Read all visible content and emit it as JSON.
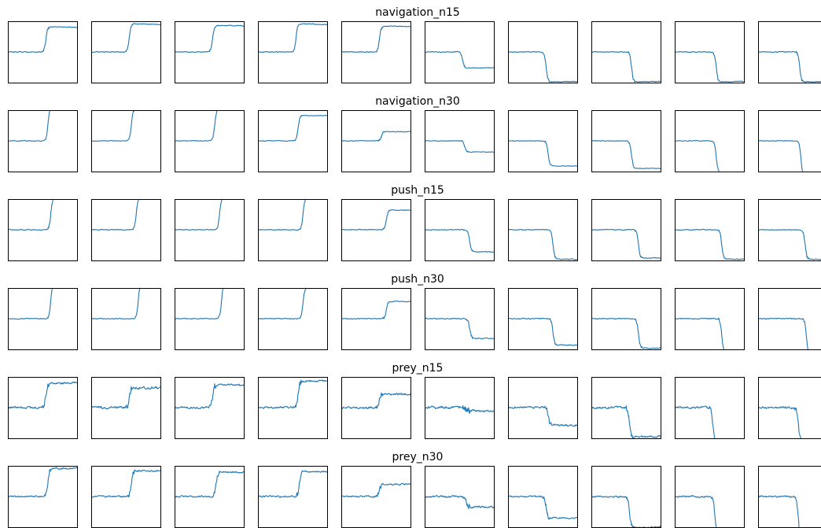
{
  "chart_data": {
    "type": "line",
    "layout": "6 rows x 10 small multiples, axes hidden",
    "grid": false,
    "legend": "none",
    "colors": {
      "trace": "#1f77b4",
      "frame": "#000000"
    },
    "rows": [
      {
        "title": "navigation_n15",
        "panels": [
          {
            "start": 0.5,
            "step_at": 0.55,
            "end": 0.91,
            "end_slope": -0.02,
            "noise": 0.005
          },
          {
            "start": 0.5,
            "step_at": 0.55,
            "end": 0.96,
            "end_slope": -0.04,
            "noise": 0.005
          },
          {
            "start": 0.5,
            "step_at": 0.55,
            "end": 0.93,
            "end_slope": -0.01,
            "noise": 0.005
          },
          {
            "start": 0.5,
            "step_at": 0.55,
            "end": 0.96,
            "end_slope": -0.04,
            "noise": 0.005
          },
          {
            "start": 0.5,
            "step_at": 0.55,
            "end": 0.92,
            "end_slope": -0.01,
            "noise": 0.005
          },
          {
            "start": 0.5,
            "step_at": 0.55,
            "end": 0.24,
            "end_slope": 0.01,
            "noise": 0.005
          },
          {
            "start": 0.5,
            "step_at": 0.55,
            "end": 0.01,
            "end_slope": 0.03,
            "noise": 0.005
          },
          {
            "start": 0.5,
            "step_at": 0.58,
            "end": 0.01,
            "end_slope": 0.03,
            "noise": 0.005
          },
          {
            "start": 0.5,
            "step_at": 0.6,
            "end": 0.01,
            "end_slope": 0.03,
            "noise": 0.005
          },
          {
            "start": 0.5,
            "step_at": 0.6,
            "end": 0.01,
            "end_slope": 0.02,
            "noise": 0.005
          }
        ]
      },
      {
        "title": "navigation_n30",
        "panels": [
          {
            "start": 0.5,
            "step_at": 0.58,
            "end": 1.05,
            "end_slope": 0,
            "noise": 0.004
          },
          {
            "start": 0.5,
            "step_at": 0.58,
            "end": 1.02,
            "end_slope": 0,
            "noise": 0.004
          },
          {
            "start": 0.5,
            "step_at": 0.58,
            "end": 1.02,
            "end_slope": 0,
            "noise": 0.004
          },
          {
            "start": 0.5,
            "step_at": 0.58,
            "end": 0.91,
            "end_slope": 0,
            "noise": 0.004
          },
          {
            "start": 0.5,
            "step_at": 0.58,
            "end": 0.65,
            "end_slope": 0,
            "noise": 0.004
          },
          {
            "start": 0.5,
            "step_at": 0.58,
            "end": 0.32,
            "end_slope": 0,
            "noise": 0.004
          },
          {
            "start": 0.5,
            "step_at": 0.58,
            "end": 0.09,
            "end_slope": 0,
            "noise": 0.004
          },
          {
            "start": 0.5,
            "step_at": 0.58,
            "end": 0.05,
            "end_slope": 0,
            "noise": 0.004
          },
          {
            "start": 0.5,
            "step_at": 0.6,
            "end": -0.02,
            "end_slope": 0,
            "noise": 0.004
          },
          {
            "start": 0.5,
            "step_at": 0.62,
            "end": -0.08,
            "end_slope": 0,
            "noise": 0.004
          }
        ]
      },
      {
        "title": "push_n15",
        "panels": [
          {
            "start": 0.5,
            "step_at": 0.62,
            "end": 1.02,
            "end_slope": 0,
            "noise": 0.005
          },
          {
            "start": 0.5,
            "step_at": 0.65,
            "end": 1.02,
            "end_slope": 0,
            "noise": 0.005
          },
          {
            "start": 0.5,
            "step_at": 0.65,
            "end": 1.02,
            "end_slope": 0,
            "noise": 0.005
          },
          {
            "start": 0.5,
            "step_at": 0.65,
            "end": 1.0,
            "end_slope": 0,
            "noise": 0.005
          },
          {
            "start": 0.5,
            "step_at": 0.65,
            "end": 0.82,
            "end_slope": 0,
            "noise": 0.005
          },
          {
            "start": 0.5,
            "step_at": 0.65,
            "end": 0.14,
            "end_slope": 0,
            "noise": 0.005
          },
          {
            "start": 0.5,
            "step_at": 0.65,
            "end": 0.02,
            "end_slope": 0,
            "noise": 0.005
          },
          {
            "start": 0.5,
            "step_at": 0.68,
            "end": 0.04,
            "end_slope": 0,
            "noise": 0.005
          },
          {
            "start": 0.5,
            "step_at": 0.68,
            "end": 0.02,
            "end_slope": 0,
            "noise": 0.005
          },
          {
            "start": 0.5,
            "step_at": 0.68,
            "end": 0.02,
            "end_slope": 0,
            "noise": 0.005
          }
        ]
      },
      {
        "title": "push_n30",
        "panels": [
          {
            "start": 0.5,
            "step_at": 0.62,
            "end": 1.1,
            "end_slope": 0,
            "noise": 0.005
          },
          {
            "start": 0.5,
            "step_at": 0.68,
            "end": 1.1,
            "end_slope": 0,
            "noise": 0.005
          },
          {
            "start": 0.5,
            "step_at": 0.68,
            "end": 1.1,
            "end_slope": 0,
            "noise": 0.005
          },
          {
            "start": 0.5,
            "step_at": 0.65,
            "end": 1.0,
            "end_slope": 0,
            "noise": 0.005
          },
          {
            "start": 0.5,
            "step_at": 0.65,
            "end": 0.78,
            "end_slope": 0,
            "noise": 0.005
          },
          {
            "start": 0.5,
            "step_at": 0.65,
            "end": 0.18,
            "end_slope": 0,
            "noise": 0.006
          },
          {
            "start": 0.5,
            "step_at": 0.65,
            "end": 0.07,
            "end_slope": 0,
            "noise": 0.006
          },
          {
            "start": 0.5,
            "step_at": 0.68,
            "end": 0.02,
            "end_slope": 0,
            "noise": 0.006
          },
          {
            "start": 0.5,
            "step_at": 0.68,
            "end": -0.05,
            "end_slope": 0,
            "noise": 0.006
          },
          {
            "start": 0.5,
            "step_at": 0.7,
            "end": -0.1,
            "end_slope": 0,
            "noise": 0.006
          }
        ]
      },
      {
        "title": "prey_n15",
        "panels": [
          {
            "start": 0.5,
            "step_at": 0.55,
            "end": 0.9,
            "end_slope": 0,
            "noise": 0.012
          },
          {
            "start": 0.5,
            "step_at": 0.55,
            "end": 0.82,
            "end_slope": 0,
            "noise": 0.015
          },
          {
            "start": 0.5,
            "step_at": 0.55,
            "end": 0.87,
            "end_slope": 0,
            "noise": 0.012
          },
          {
            "start": 0.5,
            "step_at": 0.58,
            "end": 0.93,
            "end_slope": 0,
            "noise": 0.012
          },
          {
            "start": 0.5,
            "step_at": 0.55,
            "end": 0.72,
            "end_slope": 0,
            "noise": 0.012
          },
          {
            "start": 0.5,
            "step_at": 0.6,
            "end": 0.45,
            "end_slope": 0,
            "noise": 0.015
          },
          {
            "start": 0.5,
            "step_at": 0.58,
            "end": 0.21,
            "end_slope": 0,
            "noise": 0.012
          },
          {
            "start": 0.5,
            "step_at": 0.55,
            "end": 0.03,
            "end_slope": 0,
            "noise": 0.012
          },
          {
            "start": 0.5,
            "step_at": 0.55,
            "end": -0.05,
            "end_slope": 0,
            "noise": 0.012
          },
          {
            "start": 0.5,
            "step_at": 0.58,
            "end": -0.05,
            "end_slope": 0,
            "noise": 0.012
          }
        ]
      },
      {
        "title": "prey_n30",
        "panels": [
          {
            "start": 0.5,
            "step_at": 0.58,
            "end": 0.96,
            "end_slope": 0,
            "noise": 0.01
          },
          {
            "start": 0.5,
            "step_at": 0.58,
            "end": 0.92,
            "end_slope": 0,
            "noise": 0.01
          },
          {
            "start": 0.5,
            "step_at": 0.6,
            "end": 0.9,
            "end_slope": 0,
            "noise": 0.01
          },
          {
            "start": 0.5,
            "step_at": 0.6,
            "end": 0.9,
            "end_slope": 0,
            "noise": 0.01
          },
          {
            "start": 0.5,
            "step_at": 0.55,
            "end": 0.7,
            "end_slope": 0,
            "noise": 0.01
          },
          {
            "start": 0.5,
            "step_at": 0.6,
            "end": 0.33,
            "end_slope": 0,
            "noise": 0.012
          },
          {
            "start": 0.5,
            "step_at": 0.55,
            "end": 0.15,
            "end_slope": 0,
            "noise": 0.01
          },
          {
            "start": 0.5,
            "step_at": 0.55,
            "end": 0.0,
            "end_slope": 0,
            "noise": 0.01
          },
          {
            "start": 0.5,
            "step_at": 0.58,
            "end": -0.1,
            "end_slope": 0,
            "noise": 0.01
          },
          {
            "start": 0.5,
            "step_at": 0.58,
            "end": -0.15,
            "end_slope": 0,
            "noise": 0.01
          }
        ]
      }
    ]
  }
}
